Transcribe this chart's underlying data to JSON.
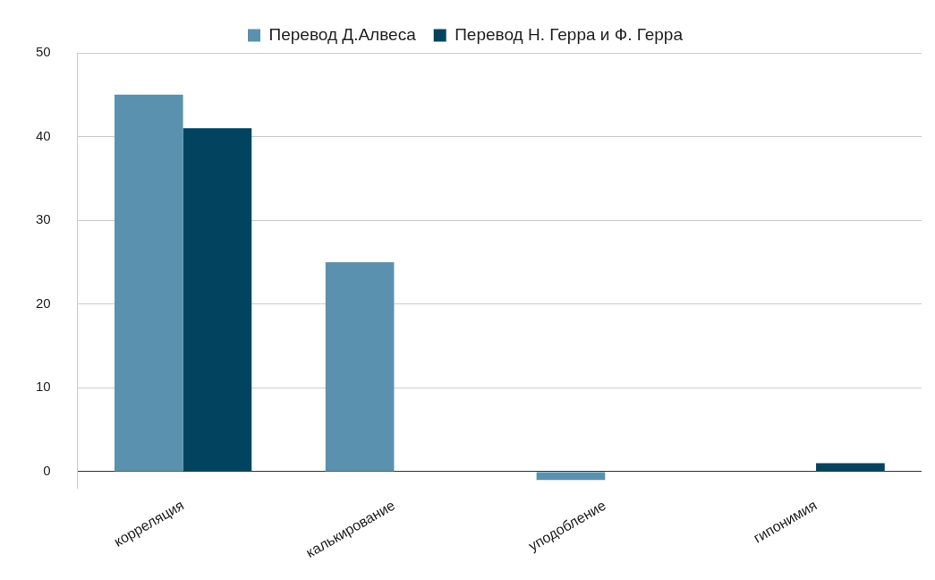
{
  "chart_data": {
    "type": "bar",
    "categories": [
      "корреляция",
      "калькирование",
      "уподобление",
      "гипонимия"
    ],
    "series": [
      {
        "name": "Перевод Д.Алвеса",
        "color": "#5a91ae",
        "values": [
          45,
          25,
          -1,
          0
        ]
      },
      {
        "name": "Перевод Н. Герра и Ф. Герра",
        "color": "#02445f",
        "values": [
          41,
          0,
          0,
          1
        ]
      }
    ],
    "ylim": [
      -2,
      50
    ],
    "yticks": [
      0,
      10,
      20,
      30,
      40,
      50
    ],
    "grid": "y",
    "legend": "top"
  }
}
